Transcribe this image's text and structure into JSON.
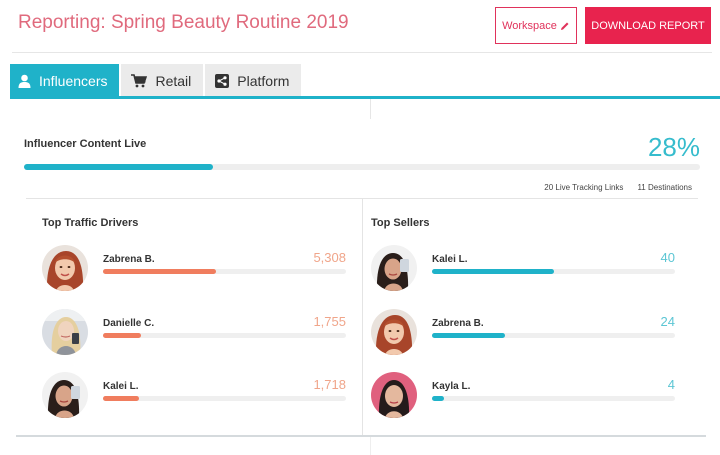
{
  "header": {
    "title": "Reporting: Spring Beauty Routine 2019",
    "workspace_label": "Workspace",
    "download_label": "DOWNLOAD REPORT"
  },
  "tabs": [
    {
      "label": "Influencers",
      "icon": "user-icon",
      "active": true
    },
    {
      "label": "Retail",
      "icon": "cart-icon",
      "active": false
    },
    {
      "label": "Platform",
      "icon": "share-icon",
      "active": false
    }
  ],
  "summary": {
    "title": "Influencer Content Live",
    "percent_label": "28%",
    "progress_fraction": 0.28,
    "tracking_links": "20 Live Tracking Links",
    "destinations": "11 Destinations"
  },
  "top_traffic": {
    "title": "Top Traffic Drivers",
    "items": [
      {
        "name": "Zabrena B.",
        "value": "5,308",
        "fraction": 0.465,
        "avatar": "redhead-woman-avatar"
      },
      {
        "name": "Danielle C.",
        "value": "1,755",
        "fraction": 0.155,
        "avatar": "blonde-woman-avatar"
      },
      {
        "name": "Kalei L.",
        "value": "1,718",
        "fraction": 0.15,
        "avatar": "dark-hair-woman-avatar"
      }
    ]
  },
  "top_sellers": {
    "title": "Top Sellers",
    "items": [
      {
        "name": "Kalei L.",
        "value": "40",
        "fraction": 0.5,
        "avatar": "dark-hair-woman-avatar"
      },
      {
        "name": "Zabrena B.",
        "value": "24",
        "fraction": 0.3,
        "avatar": "redhead-woman-avatar"
      },
      {
        "name": "Kayla L.",
        "value": "4",
        "fraction": 0.05,
        "avatar": "pink-background-woman-avatar"
      }
    ]
  },
  "colors": {
    "accent": "#1fb2c9",
    "brand_pink": "#e8234e",
    "traffic_bar": "#f07d5e",
    "traffic_value": "#f0a58a"
  }
}
